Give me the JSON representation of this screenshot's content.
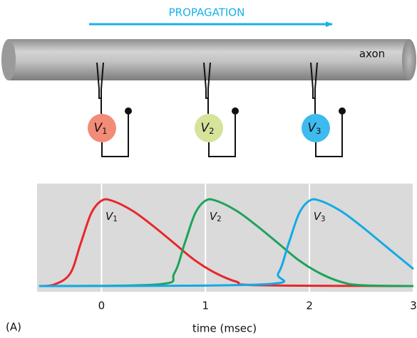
{
  "diagram": {
    "propagation_label": "PROPAGATION",
    "axon_label": "axon",
    "electrodes": [
      {
        "symbol": "V",
        "subscript": "1",
        "color": "#f28b78"
      },
      {
        "symbol": "V",
        "subscript": "2",
        "color": "#d5e39b"
      },
      {
        "symbol": "V",
        "subscript": "3",
        "color": "#3dbbef"
      }
    ]
  },
  "chart_data": {
    "type": "line",
    "panel_label": "(A)",
    "xlabel": "time (msec)",
    "xlim": [
      -0.62,
      3.0
    ],
    "ylim": [
      0,
      1.2
    ],
    "xticks": [
      0,
      1,
      2,
      3
    ],
    "grid": true,
    "background": "#d9dad9",
    "series": [
      {
        "label": {
          "symbol": "V",
          "subscript": "1"
        },
        "color": "#e8262b",
        "x": [
          -0.6,
          -0.45,
          -0.3,
          -0.2,
          -0.1,
          0,
          0.1,
          0.3,
          0.5,
          0.7,
          0.9,
          1.1,
          1.3,
          1.5,
          3.0
        ],
        "values": [
          0,
          0.02,
          0.15,
          0.5,
          0.85,
          1.0,
          1.0,
          0.88,
          0.7,
          0.5,
          0.3,
          0.15,
          0.05,
          0.01,
          0
        ]
      },
      {
        "label": {
          "symbol": "V",
          "subscript": "2"
        },
        "color": "#1ca35a",
        "x": [
          -0.6,
          0.55,
          0.7,
          0.8,
          0.9,
          1.0,
          1.1,
          1.3,
          1.5,
          1.7,
          1.9,
          2.1,
          2.3,
          2.5,
          3.0
        ],
        "values": [
          0,
          0.02,
          0.15,
          0.5,
          0.85,
          1.0,
          1.0,
          0.88,
          0.7,
          0.5,
          0.3,
          0.15,
          0.05,
          0.01,
          0
        ]
      },
      {
        "label": {
          "symbol": "V",
          "subscript": "3"
        },
        "color": "#14a9e6",
        "x": [
          -0.6,
          1.55,
          1.7,
          1.8,
          1.9,
          2.0,
          2.1,
          2.3,
          2.5,
          2.7,
          2.9,
          3.0
        ],
        "values": [
          0,
          0.02,
          0.15,
          0.5,
          0.85,
          1.0,
          1.0,
          0.88,
          0.7,
          0.5,
          0.3,
          0.2
        ]
      }
    ]
  }
}
